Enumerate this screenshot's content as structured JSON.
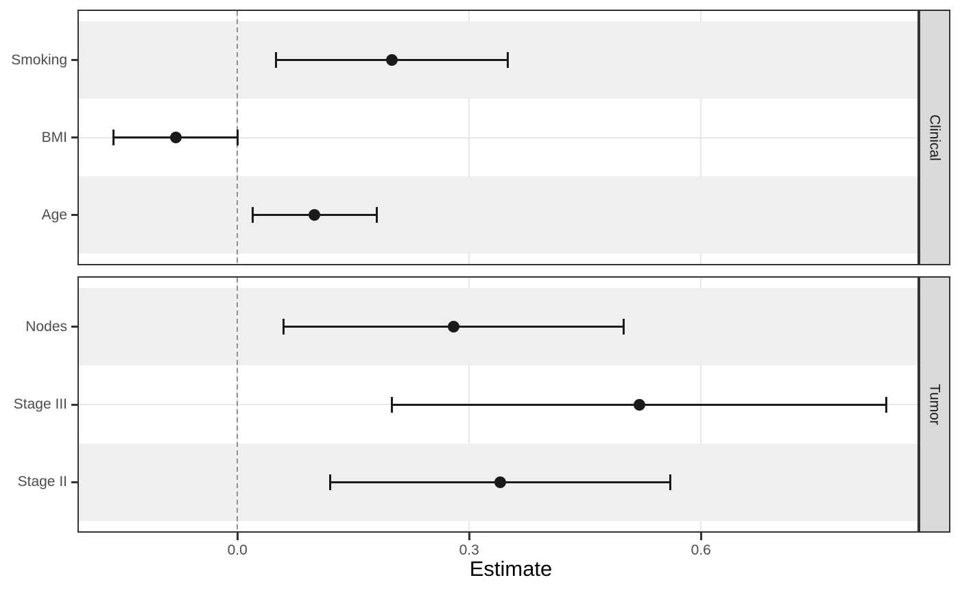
{
  "chart_data": {
    "type": "scatter",
    "subtype": "forest-dot-whisker",
    "title": "",
    "xlabel": "Estimate",
    "ylabel": "",
    "xlim": [
      -0.207,
      0.882
    ],
    "x_ticks": [
      0,
      0.3,
      0.6
    ],
    "x_tick_labels": [
      "0.0",
      "0.3",
      "0.6"
    ],
    "reference_line_x": 0,
    "grid": "major",
    "legend": "none",
    "facets": [
      {
        "label": "Clinical",
        "rows": [
          {
            "label": "Smoking",
            "estimate": 0.2,
            "ci_low": 0.05,
            "ci_high": 0.35
          },
          {
            "label": "BMI",
            "estimate": -0.08,
            "ci_low": -0.16,
            "ci_high": 0.0
          },
          {
            "label": "Age",
            "estimate": 0.1,
            "ci_low": 0.02,
            "ci_high": 0.18
          }
        ]
      },
      {
        "label": "Tumor",
        "rows": [
          {
            "label": "Nodes",
            "estimate": 0.28,
            "ci_low": 0.06,
            "ci_high": 0.5
          },
          {
            "label": "Stage III",
            "estimate": 0.52,
            "ci_low": 0.2,
            "ci_high": 0.84
          },
          {
            "label": "Stage II",
            "estimate": 0.34,
            "ci_low": 0.12,
            "ci_high": 0.56
          }
        ]
      }
    ]
  },
  "colors": {
    "point": "#1A1A1A",
    "errorbar": "#1A1A1A",
    "stripe": "#EFEFEF",
    "gridline": "#E8E8E8",
    "strip_bg": "#D9D9D9",
    "strip_text": "#1A1A1A",
    "panel_border": "#333333",
    "tick_mark": "#333333",
    "reference_line": "#909090",
    "axis_text": "#4D4D4D",
    "axis_title": "#000000"
  }
}
